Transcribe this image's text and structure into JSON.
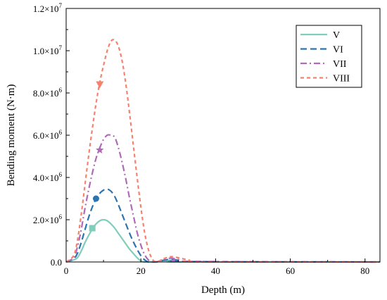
{
  "chart_data": {
    "type": "line",
    "title": "",
    "xlabel": "Depth (m)",
    "ylabel": "Bending moment (N·m)",
    "xlim": [
      0,
      84
    ],
    "ylim": [
      0,
      12000000
    ],
    "x_ticks": [
      0,
      20,
      40,
      60,
      80
    ],
    "x_tick_labels": [
      "0",
      "20",
      "40",
      "60",
      "80"
    ],
    "y_ticks": [
      0,
      2000000,
      4000000,
      6000000,
      8000000,
      10000000,
      12000000
    ],
    "y_tick_labels": [
      {
        "mantissa": "0.0",
        "exp": ""
      },
      {
        "mantissa": "2.0×10",
        "exp": "6"
      },
      {
        "mantissa": "4.0×10",
        "exp": "6"
      },
      {
        "mantissa": "6.0×10",
        "exp": "6"
      },
      {
        "mantissa": "8.0×10",
        "exp": "6"
      },
      {
        "mantissa": "1.0×10",
        "exp": "7"
      },
      {
        "mantissa": "1.2×10",
        "exp": "7"
      }
    ],
    "grid": false,
    "legend_position": "top-right",
    "series": [
      {
        "name": "V",
        "color": "#7fcdbb",
        "dash": "solid",
        "marker": "square",
        "marker_point": [
          7,
          1600000
        ],
        "x": [
          0,
          2,
          3,
          4,
          5,
          6,
          7,
          8,
          9,
          10,
          11,
          12,
          13,
          14,
          15,
          16,
          17,
          18,
          19,
          20,
          21,
          22,
          23,
          24,
          25,
          26,
          28,
          30,
          31,
          84
        ],
        "y": [
          0,
          100000,
          200000,
          500000,
          900000,
          1250000,
          1550000,
          1800000,
          1950000,
          2000000,
          1950000,
          1800000,
          1600000,
          1350000,
          1100000,
          850000,
          600000,
          400000,
          200000,
          50000,
          0,
          0,
          0,
          0,
          30000,
          60000,
          80000,
          50000,
          0,
          0
        ]
      },
      {
        "name": "VI",
        "color": "#2b74b0",
        "dash": "long-dash",
        "marker": "circle",
        "marker_point": [
          8,
          3000000
        ],
        "x": [
          0,
          2,
          3,
          4,
          5,
          6,
          7,
          8,
          9,
          10,
          11,
          12,
          13,
          14,
          15,
          16,
          17,
          18,
          19,
          20,
          21,
          22,
          23,
          24,
          25,
          26,
          28,
          30,
          32,
          84
        ],
        "y": [
          0,
          150000,
          400000,
          900000,
          1500000,
          2100000,
          2600000,
          3000000,
          3250000,
          3400000,
          3450000,
          3350000,
          3100000,
          2700000,
          2250000,
          1800000,
          1350000,
          950000,
          600000,
          300000,
          100000,
          0,
          0,
          0,
          30000,
          80000,
          120000,
          80000,
          20000,
          0
        ]
      },
      {
        "name": "VII",
        "color": "#b06ab8",
        "dash": "dash-dot",
        "marker": "star",
        "marker_point": [
          9,
          5300000
        ],
        "x": [
          0,
          2,
          3,
          4,
          5,
          6,
          7,
          8,
          9,
          10,
          11,
          12,
          13,
          14,
          15,
          16,
          17,
          18,
          19,
          20,
          21,
          22,
          23,
          24,
          25,
          26,
          28,
          30,
          33,
          84
        ],
        "y": [
          0,
          200000,
          700000,
          1500000,
          2500000,
          3400000,
          4200000,
          4900000,
          5400000,
          5800000,
          6000000,
          6000000,
          5900000,
          5400000,
          4700000,
          3900000,
          3000000,
          2200000,
          1400000,
          800000,
          350000,
          100000,
          0,
          0,
          50000,
          120000,
          180000,
          120000,
          30000,
          0
        ]
      },
      {
        "name": "VIII",
        "color": "#f4826e",
        "dash": "short-dash",
        "marker": "triangle-down",
        "marker_point": [
          9,
          8400000
        ],
        "x": [
          0,
          2,
          3,
          4,
          5,
          6,
          7,
          8,
          9,
          10,
          11,
          12,
          13,
          14,
          15,
          16,
          17,
          18,
          19,
          20,
          21,
          22,
          23,
          24,
          25,
          26,
          28,
          30,
          33,
          36,
          84
        ],
        "y": [
          0,
          300000,
          1000000,
          2200000,
          3600000,
          5000000,
          6300000,
          7500000,
          8500000,
          9300000,
          10000000,
          10450000,
          10500000,
          10200000,
          9500000,
          8400000,
          7000000,
          5500000,
          4000000,
          2600000,
          1400000,
          600000,
          150000,
          0,
          50000,
          150000,
          250000,
          200000,
          80000,
          0,
          0
        ]
      }
    ]
  }
}
